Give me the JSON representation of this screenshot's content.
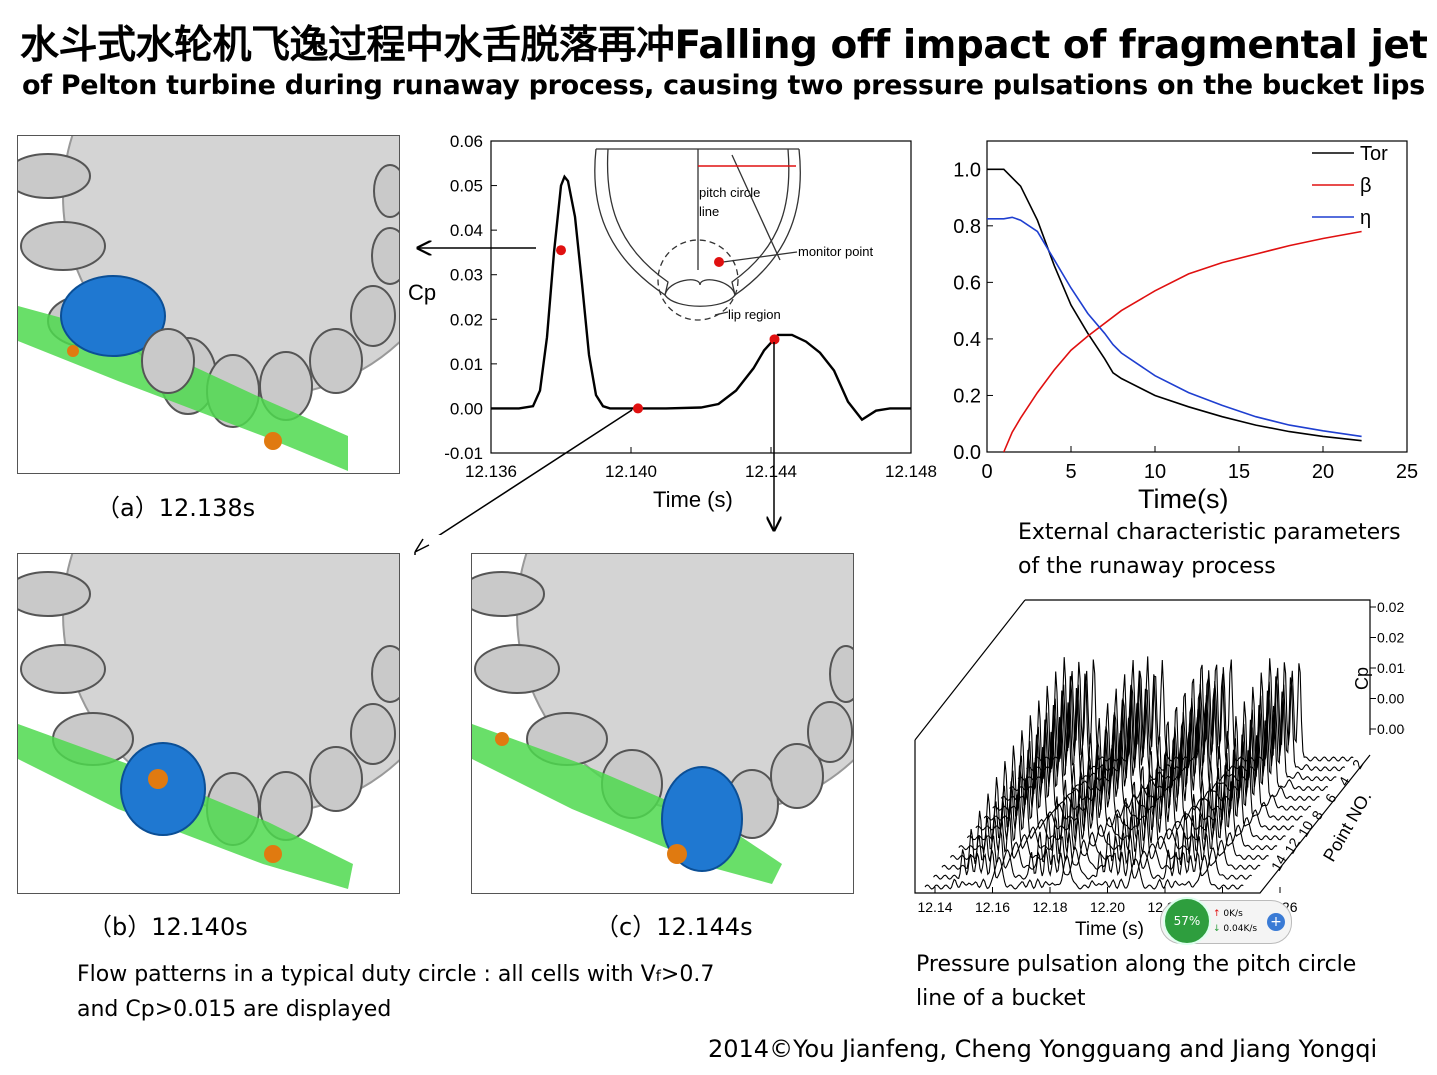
{
  "title_line1": "水斗式水轮机飞逸过程中水舌脱落再冲Falling off impact of fragmental jet",
  "title_line2": "of Pelton turbine during runaway process, causing two pressure pulsations on the bucket lips",
  "captions": {
    "a": "（a）12.138s",
    "b": "（b）12.140s",
    "c": "（c）12.144s"
  },
  "flow_note": {
    "line1_pre": "Flow patterns  in a typical duty circle : all cells with V",
    "line1_sub": "f",
    "line1_post": ">0.7",
    "line2": "and Cp>0.015 are displayed"
  },
  "external_note": [
    "External characteristic parameters",
    "of the runaway process"
  ],
  "pressure_note": [
    "Pressure pulsation along the pitch circle",
    "line of a bucket"
  ],
  "credit": "2014©You Jianfeng, Cheng Yongguang and Jiang Yongqi",
  "colors": {
    "jet": "#4fd94f",
    "bucket_active": "#1f78d1",
    "bucket": "#bdbdbd",
    "red": "#e01010"
  },
  "chart_data": [
    {
      "type": "line",
      "title": "",
      "xlabel": "Time (s)",
      "ylabel": "Cp",
      "xlim": [
        12.136,
        12.148
      ],
      "ylim": [
        -0.01,
        0.06
      ],
      "xticks": [
        "12.136",
        "12.140",
        "12.144",
        "12.148"
      ],
      "yticks": [
        "-0.01",
        "0.00",
        "0.01",
        "0.02",
        "0.03",
        "0.04",
        "0.05",
        "0.06"
      ],
      "series": [
        {
          "x": [
            12.136,
            12.1368,
            12.1372,
            12.1374,
            12.1376,
            12.1378,
            12.138,
            12.1381,
            12.1382,
            12.1384,
            12.1386,
            12.1388,
            12.139,
            12.1392,
            12.1394,
            12.1398,
            12.14,
            12.141,
            12.142,
            12.1425,
            12.143,
            12.1435,
            12.1438,
            12.1442,
            12.1446,
            12.145,
            12.1454,
            12.1458,
            12.1462,
            12.1466,
            12.147,
            12.1474,
            12.148
          ],
          "y": [
            0.0,
            0.0,
            0.0005,
            0.004,
            0.016,
            0.035,
            0.05,
            0.052,
            0.051,
            0.043,
            0.028,
            0.012,
            0.003,
            0.0005,
            0.0,
            0.0,
            0.0,
            0.0,
            0.0002,
            0.001,
            0.004,
            0.009,
            0.013,
            0.0165,
            0.0165,
            0.015,
            0.0125,
            0.0085,
            0.0015,
            -0.0025,
            -0.0005,
            0.0,
            0.0
          ]
        }
      ],
      "markers": [
        {
          "x": 12.138,
          "y": 0.0355
        },
        {
          "x": 12.1402,
          "y": 0.0
        },
        {
          "x": 12.1441,
          "y": 0.0155
        }
      ],
      "inset_labels": [
        "pitch circle",
        "line",
        "monitor point",
        "lip region"
      ]
    },
    {
      "type": "line",
      "title": "",
      "xlabel": "Time(s)",
      "ylabel": "",
      "xlim": [
        0,
        25
      ],
      "ylim": [
        0,
        1.1
      ],
      "xticks": [
        "0",
        "5",
        "10",
        "15",
        "20",
        "25"
      ],
      "yticks": [
        "0.0",
        "0.2",
        "0.4",
        "0.6",
        "0.8",
        "1.0"
      ],
      "legend": "top-right",
      "series": [
        {
          "name": "Tor",
          "color": "#000000",
          "x": [
            0,
            1,
            2,
            3,
            4,
            5,
            6,
            7,
            7.5,
            8,
            10,
            12,
            14,
            16,
            18,
            20,
            22.3
          ],
          "y": [
            1.0,
            1.0,
            0.94,
            0.82,
            0.66,
            0.52,
            0.42,
            0.33,
            0.28,
            0.26,
            0.2,
            0.16,
            0.125,
            0.095,
            0.072,
            0.055,
            0.04
          ]
        },
        {
          "name": "β",
          "color": "#e01010",
          "x": [
            1.0,
            1.5,
            2,
            3,
            4,
            5,
            6,
            8,
            10,
            12,
            14,
            16,
            18,
            20,
            22.3
          ],
          "y": [
            0.0,
            0.07,
            0.12,
            0.21,
            0.29,
            0.36,
            0.41,
            0.5,
            0.57,
            0.63,
            0.67,
            0.7,
            0.73,
            0.755,
            0.78
          ]
        },
        {
          "name": "η",
          "color": "#1f3fd0",
          "x": [
            0,
            1,
            1.5,
            2,
            3,
            4,
            5,
            6,
            7,
            7.5,
            8,
            10,
            12,
            14,
            16,
            18,
            20,
            22.3
          ],
          "y": [
            0.825,
            0.825,
            0.83,
            0.82,
            0.78,
            0.68,
            0.58,
            0.49,
            0.42,
            0.38,
            0.35,
            0.27,
            0.21,
            0.165,
            0.125,
            0.095,
            0.075,
            0.055
          ]
        }
      ]
    },
    {
      "type": "line",
      "title": "",
      "xlabel": "Time (s)",
      "ylabel": "Cp",
      "zlabel": "Point NO.",
      "xticks": [
        "12.14",
        "12.16",
        "12.18",
        "12.20",
        "12.22",
        "12.24",
        "12.26"
      ],
      "cp_ticks": [
        "0.0284",
        "0.0213",
        "0.0142",
        "0.0071",
        "0.0000"
      ],
      "point_ticks": [
        "2",
        "4",
        "6",
        "8",
        "10",
        "12",
        "14"
      ],
      "points": 14,
      "peak_times": [
        12.148,
        12.176,
        12.204,
        12.232
      ]
    }
  ],
  "widget": {
    "percent": "57%",
    "up": "0K/s",
    "down": "0.04K/s",
    "plus": "+"
  }
}
